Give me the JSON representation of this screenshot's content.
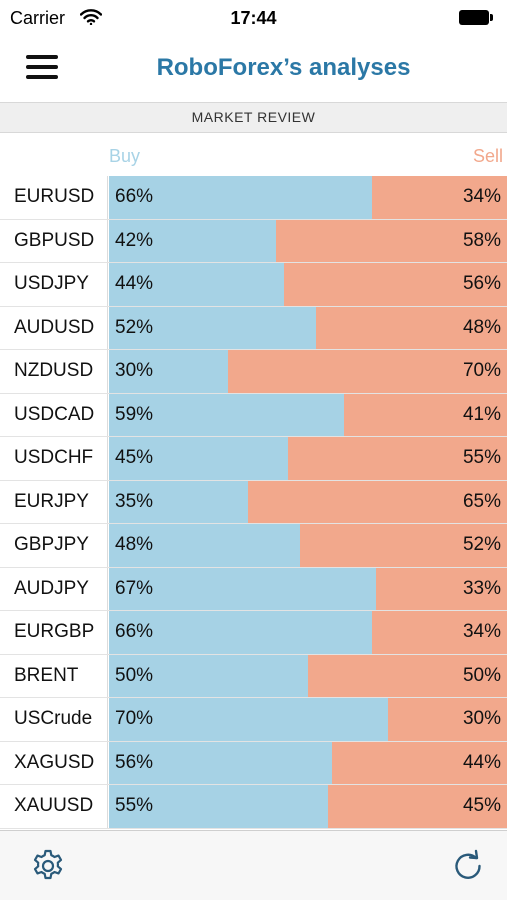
{
  "status": {
    "carrier": "Carrier",
    "time": "17:44"
  },
  "header": {
    "title": "RoboForex’s analyses"
  },
  "section": {
    "title": "MARKET REVIEW"
  },
  "columns": {
    "buy": "Buy",
    "sell": "Sell"
  },
  "colors": {
    "buy": "#a6d2e5",
    "sell": "#f2a88c",
    "title": "#2b78a6"
  },
  "icons": {
    "menu": "hamburger-menu-icon",
    "settings": "gear-icon",
    "refresh": "refresh-icon"
  },
  "rows": [
    {
      "symbol": "EURUSD",
      "buy": 66,
      "sell": 34,
      "buy_label": "66%",
      "sell_label": "34%"
    },
    {
      "symbol": "GBPUSD",
      "buy": 42,
      "sell": 58,
      "buy_label": "42%",
      "sell_label": "58%"
    },
    {
      "symbol": "USDJPY",
      "buy": 44,
      "sell": 56,
      "buy_label": "44%",
      "sell_label": "56%"
    },
    {
      "symbol": "AUDUSD",
      "buy": 52,
      "sell": 48,
      "buy_label": "52%",
      "sell_label": "48%"
    },
    {
      "symbol": "NZDUSD",
      "buy": 30,
      "sell": 70,
      "buy_label": "30%",
      "sell_label": "70%"
    },
    {
      "symbol": "USDCAD",
      "buy": 59,
      "sell": 41,
      "buy_label": "59%",
      "sell_label": "41%"
    },
    {
      "symbol": "USDCHF",
      "buy": 45,
      "sell": 55,
      "buy_label": "45%",
      "sell_label": "55%"
    },
    {
      "symbol": "EURJPY",
      "buy": 35,
      "sell": 65,
      "buy_label": "35%",
      "sell_label": "65%"
    },
    {
      "symbol": "GBPJPY",
      "buy": 48,
      "sell": 52,
      "buy_label": "48%",
      "sell_label": "52%"
    },
    {
      "symbol": "AUDJPY",
      "buy": 67,
      "sell": 33,
      "buy_label": "67%",
      "sell_label": "33%"
    },
    {
      "symbol": "EURGBP",
      "buy": 66,
      "sell": 34,
      "buy_label": "66%",
      "sell_label": "34%"
    },
    {
      "symbol": "BRENT",
      "buy": 50,
      "sell": 50,
      "buy_label": "50%",
      "sell_label": "50%"
    },
    {
      "symbol": "USCrude",
      "buy": 70,
      "sell": 30,
      "buy_label": "70%",
      "sell_label": "30%"
    },
    {
      "symbol": "XAGUSD",
      "buy": 56,
      "sell": 44,
      "buy_label": "56%",
      "sell_label": "44%"
    },
    {
      "symbol": "XAUUSD",
      "buy": 55,
      "sell": 45,
      "buy_label": "55%",
      "sell_label": "45%"
    }
  ]
}
